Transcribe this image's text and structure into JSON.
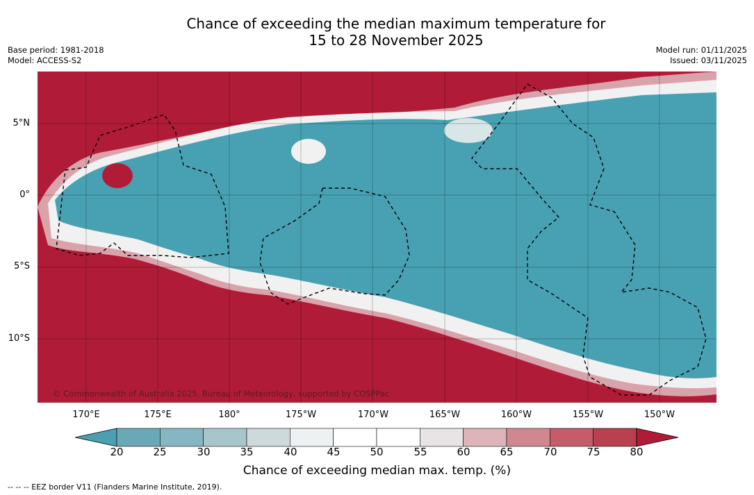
{
  "title": {
    "line1": "Chance of exceeding the median maximum temperature for",
    "line2": "15 to 28 November 2025"
  },
  "meta_left": {
    "base_period": "Base period: 1981-2018",
    "model": "Model: ACCESS-S2"
  },
  "meta_right": {
    "model_run": "Model run: 01/11/2025",
    "issued": "Issued: 03/11/2025"
  },
  "map": {
    "copyright": "© Commonwealth of Australia 2025, Bureau of Meteorology, supported by COSPPac",
    "latitude_labels": [
      "5°N",
      "0°",
      "5°S",
      "10°S"
    ],
    "longitude_labels": [
      "170°E",
      "175°E",
      "180°",
      "175°W",
      "170°W",
      "165°W",
      "160°W",
      "155°W",
      "150°W"
    ]
  },
  "colorbar": {
    "ticks": [
      "20",
      "25",
      "30",
      "35",
      "40",
      "45",
      "50",
      "55",
      "60",
      "65",
      "70",
      "75",
      "80"
    ],
    "colors": [
      "#4aa0b0",
      "#6aa8b6",
      "#86b6c2",
      "#a9c5cc",
      "#ced9dc",
      "#edf1f2",
      "#ffffff",
      "#ffffff",
      "#e8e4e5",
      "#ddb4ba",
      "#d08890",
      "#c45d69",
      "#b8404f",
      "#b01c37"
    ],
    "title": "Chance of exceeding median max. temp. (%)"
  },
  "legend": {
    "eez": "--  --  -- EEZ border V11 (Flanders Marine Institute, 2019)."
  }
}
